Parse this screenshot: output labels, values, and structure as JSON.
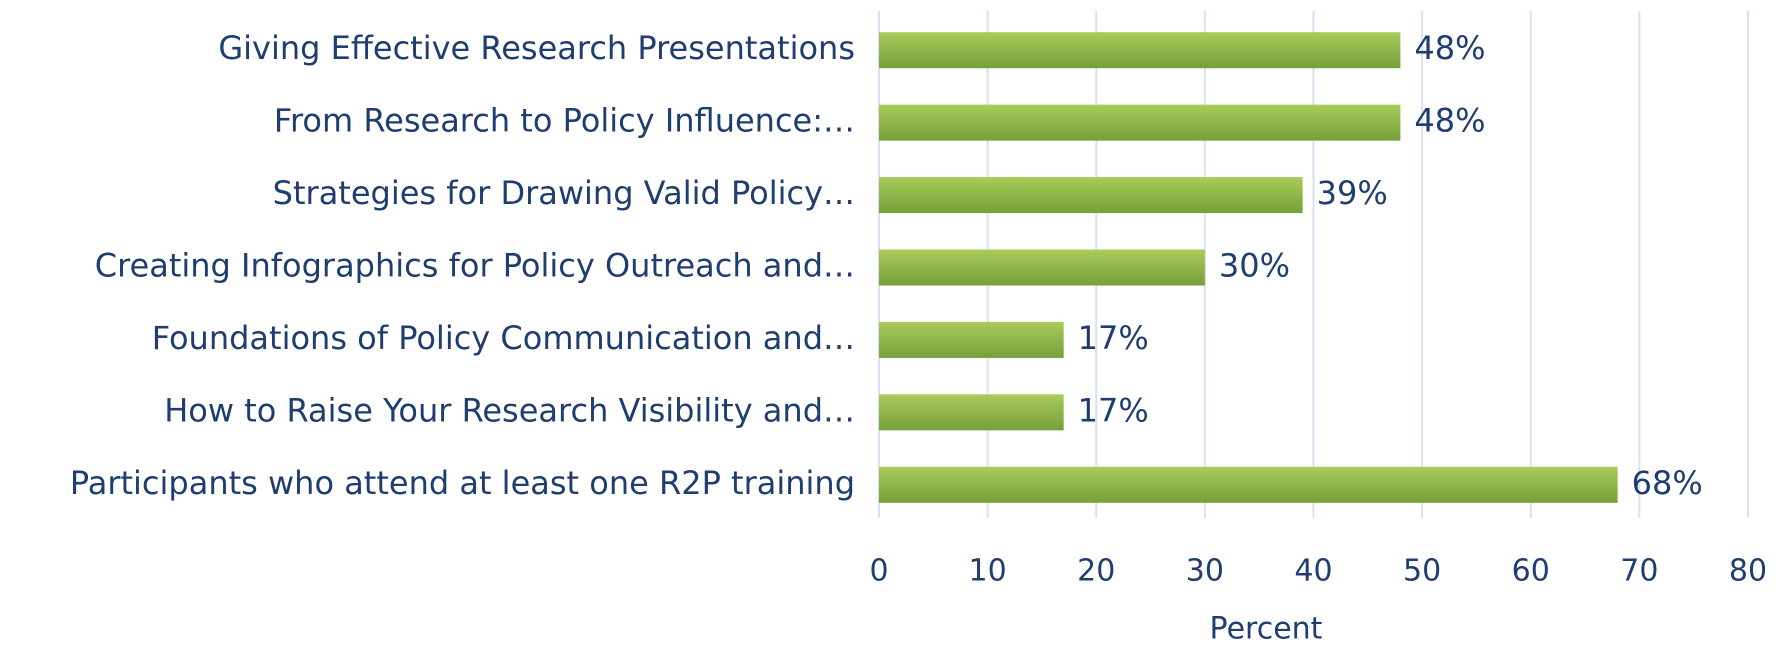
{
  "chart_data": {
    "type": "bar",
    "orientation": "horizontal",
    "xlabel": "Percent",
    "categories": [
      "Giving Effective Research Presentations",
      "From Research to Policy Influence:…",
      "Strategies for Drawing Valid Policy…",
      "Creating Infographics for Policy Outreach and…",
      "Foundations of Policy Communication and…",
      "How to Raise Your Research Visibility and…",
      "Participants who attend at least one R2P training"
    ],
    "values": [
      48,
      48,
      39,
      30,
      17,
      17,
      68
    ],
    "value_labels": [
      "48%",
      "48%",
      "39%",
      "30%",
      "17%",
      "17%",
      "68%"
    ],
    "color": "#8db543",
    "xlim": [
      0,
      80
    ],
    "xticks": [
      0,
      10,
      20,
      30,
      40,
      50,
      60,
      70,
      80
    ],
    "grid": true
  }
}
